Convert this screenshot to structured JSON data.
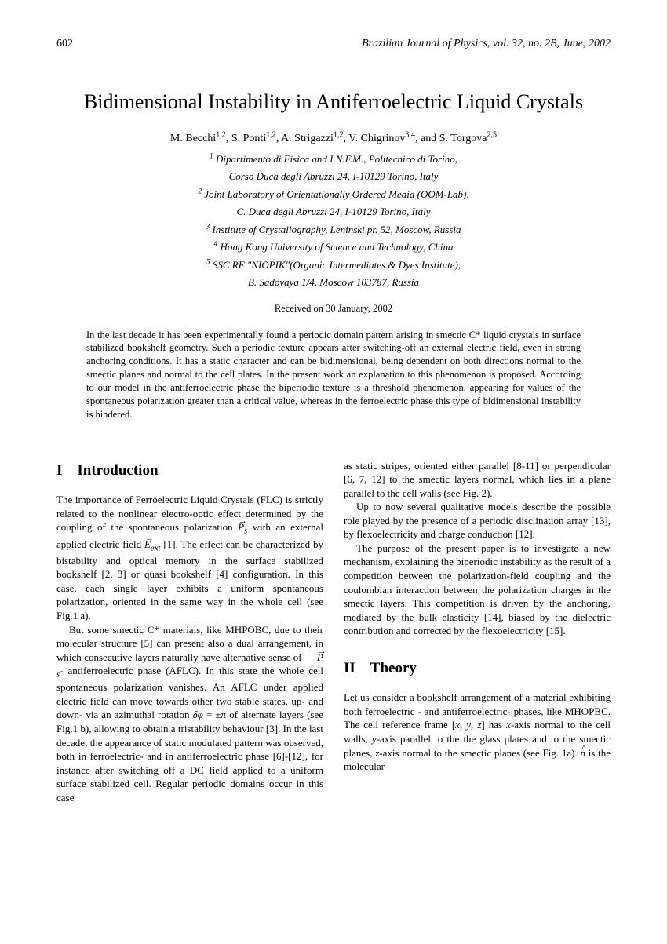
{
  "header": {
    "page_number": "602",
    "journal": "Brazilian Journal of Physics, vol. 32, no. 2B, June, 2002"
  },
  "title": "Bidimensional Instability in Antiferroelectric Liquid Crystals",
  "authors_html": "M. Becchi<sup>1,2</sup>, S. Ponti<sup>1,2</sup>, A. Strigazzi<sup>1,2</sup>, V. Chigrinov<sup>3,4</sup>, and S. Torgova<sup>2,5</sup>",
  "affiliations": [
    "<sup>1</sup> Dipartimento di Fisica and I.N.F.M., Politecnico di Torino,",
    "Corso Duca degli Abruzzi 24, I-10129 Torino, Italy",
    "<sup>2</sup> Joint Laboratory of Orientationally Ordered Media (OOM-Lab),",
    "C. Duca degli Abruzzi 24, I-10129 Torino, Italy",
    "<sup>3</sup> Institute of Crystallography, Leninski pr. 52, Moscow, Russia",
    "<sup>4</sup> Hong Kong University of Science and Technology, China",
    "<sup>5</sup> SSC RF \"NIOPIK\"(Organic Intermediates & Dyes Institute),",
    "B. Sadovaya 1/4, Moscow 103787, Russia"
  ],
  "received": "Received on 30 January, 2002",
  "abstract": "In the last decade it has been experimentally found a periodic domain pattern arising in smectic C* liquid crystals in surface stabilized bookshelf geometry. Such a periodic texture appears after switching-off an external electric field, even in strong anchoring conditions. It has a static character and can be bidimensional, being dependent on both directions normal to the smectic planes and normal to the cell plates. In the present work an explanation to this phenomenon is proposed. According to our model in the antiferroelectric phase the biperiodic texture is a threshold phenomenon, appearing for values of the spontaneous polarization greater than a critical value, whereas in the ferroelectric phase this type of bidimensional instability is hindered.",
  "sections": {
    "intro_heading": "I Introduction",
    "intro_p1_html": "The importance of Ferroelectric Liquid Crystals (FLC) is strictly related to the nonlinear electro-optic effect determined by the coupling of the spontaneous polarization <span class=\"vec\"><i>P</i></span><sub><i>s</i></sub> with an external applied electric field <span class=\"vec\"><i>E</i></span><sub><i>ext</i></sub> [1]. The effect can be characterized by bistability and optical memory in the surface stabilized bookshelf [2, 3] or quasi bookshelf [4] configuration. In this case, each single layer exhibits a uniform spontaneous polarization, oriented in the same way in the whole cell (see Fig.1 a).",
    "intro_p2_html": "But some smectic C* materials, like MHPOBC, due to their molecular structure [5] can present also a dual arrangement, in which consecutive layers naturally have alternative sense of <span class=\"vec\"><i>P</i></span><sub><i>s</i></sub>- antiferroelectric phase (AFLC). In this state the whole cell spontaneous polarization vanishes. An AFLC under applied electric field can move towards other two stable states, up- and down- via an azimuthal rotation <i>δφ</i> = ±<i>π</i> of alternate layers (see Fig.1 b), allowing to obtain a tristability behaviour [3]. In the last decade, the appearance of static modulated pattern was observed, both in ferroelectric- and in antiferroelectric phase [6]-[12], for instance after switching off a DC field applied to a uniform surface stabilized cell. Regular periodic domains occur in this case",
    "col2_p1": "as static stripes, oriented either parallel [8-11] or perpendicular [6, 7, 12] to the smectic layers normal, which lies in a plane parallel to the cell walls (see Fig. 2).",
    "col2_p2": "Up to now several qualitative models describe the possible role played by the presence of a periodic disclination array [13], by flexoelectricity and charge conduction [12].",
    "col2_p3": "The purpose of the present paper is to investigate a new mechanism, explaining the biperiodic instability as the result of a competition between the polarization-field coupling and the coulombian interaction between the polarization charges in the smectic layers. This competition is driven by the anchoring, mediated by the bulk elasticity [14], biased by the dielectric contribution and corrected by the flexoelectricity [15].",
    "theory_heading": "II Theory",
    "theory_p1_html": "Let us consider a bookshelf arrangement of a material exhibiting both ferroelectric - and antiferroelectric- phases, like MHOPBC. The cell reference frame [<i>x</i>, <i>y</i>, <i>z</i>] has <i>x</i>-axis normal to the cell walls, <i>y</i>-axis parallel to the the glass plates and to the smectic planes, <i>z</i>-axis normal to the smectic planes (see Fig. 1a). <span class=\"hat\"><i>n</i></span> is the molecular"
  }
}
